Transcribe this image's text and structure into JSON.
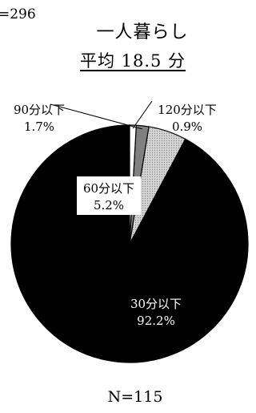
{
  "cut_off_text": "=296",
  "chart_data": {
    "type": "pie",
    "title": "一人暮らし",
    "subtitle": "平均 18.5 分",
    "footer": "N=115",
    "slices": [
      {
        "label": "30分以下",
        "value": 92.2,
        "value_label": "92.2%",
        "color": "#000000",
        "pattern": "solid"
      },
      {
        "label": "60分以下",
        "value": 5.2,
        "value_label": "5.2%",
        "color": "#c8c8c8",
        "pattern": "dots"
      },
      {
        "label": "90分以下",
        "value": 1.7,
        "value_label": "1.7%",
        "color": "#808080",
        "pattern": "solid"
      },
      {
        "label": "120分以下",
        "value": 0.9,
        "value_label": "0.9%",
        "color": "#ffffff",
        "pattern": "solid"
      }
    ],
    "start": "12 o'clock",
    "direction": "counter-clockwise from 12 o'clock, largest slice first"
  }
}
